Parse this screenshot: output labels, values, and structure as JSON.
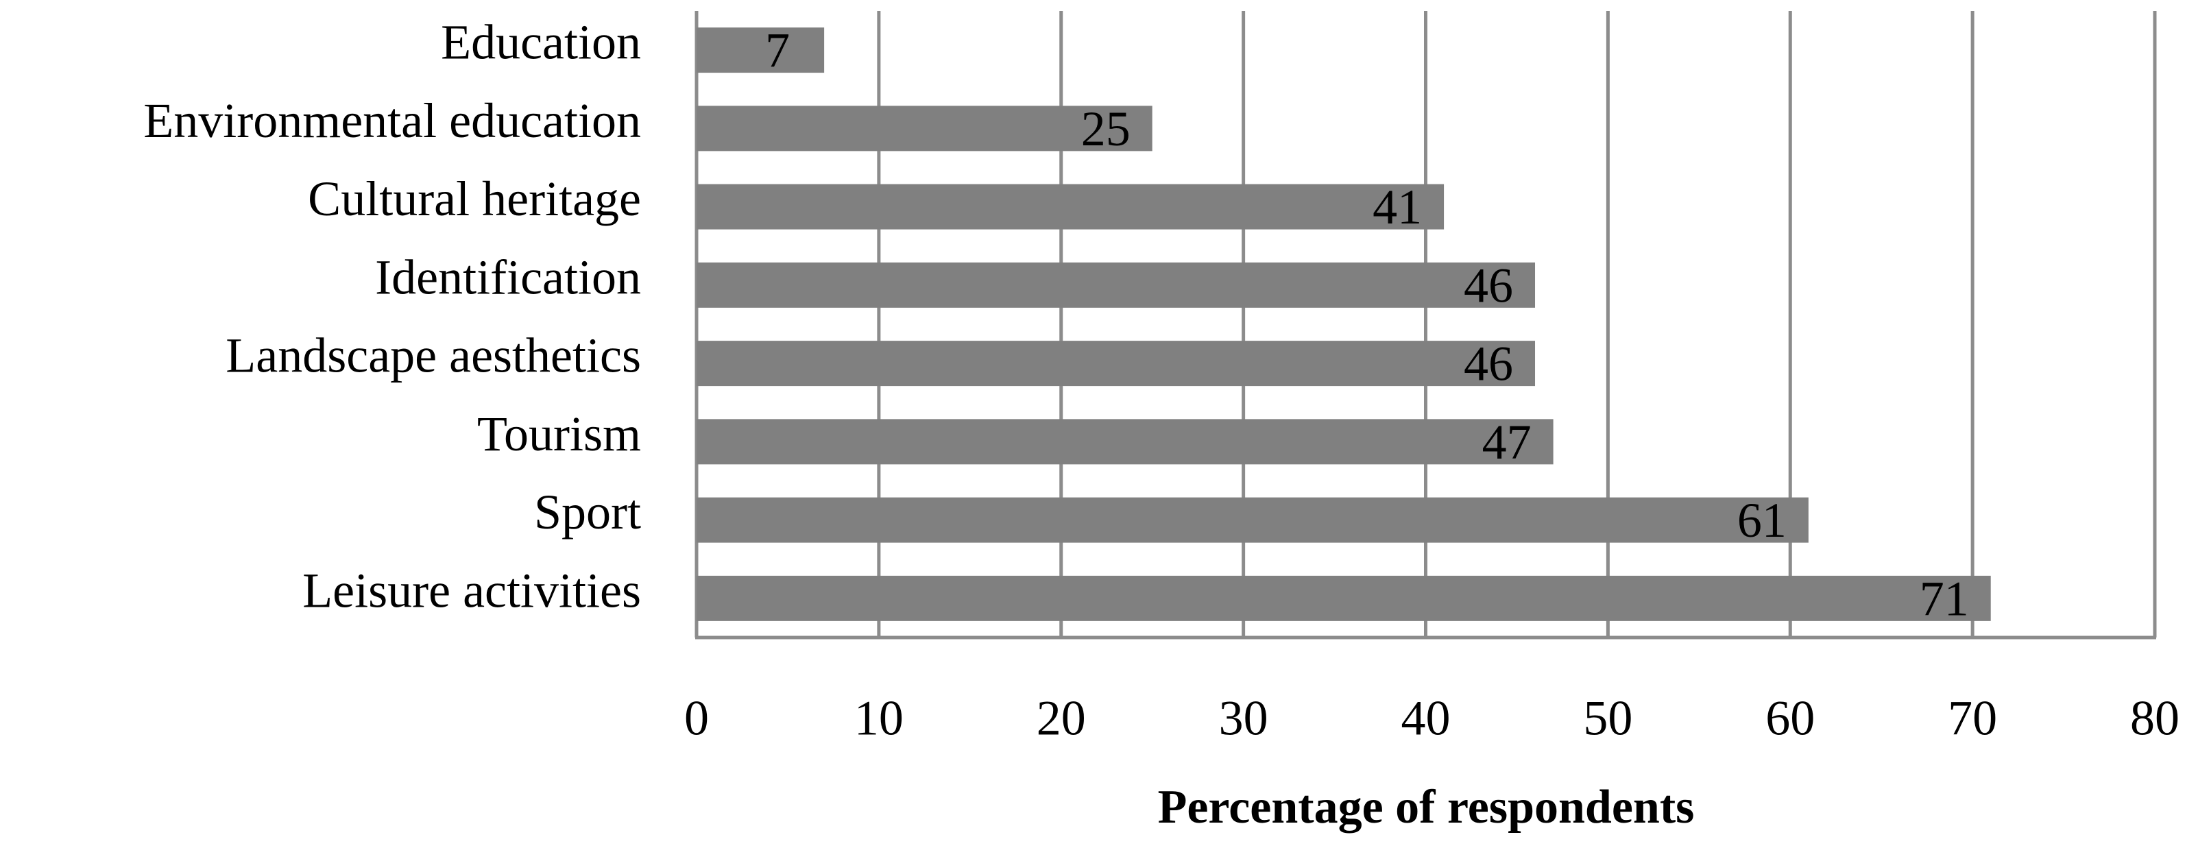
{
  "chart_data": {
    "type": "bar",
    "orientation": "horizontal",
    "x_label": "Percentage of respondents",
    "categories": [
      "Education",
      "Environmental education",
      "Cultural heritage",
      "Identification",
      "Landscape aesthetics",
      "Tourism",
      "Sport",
      "Leisure activities"
    ],
    "values": [
      7,
      25,
      41,
      46,
      46,
      47,
      61,
      71
    ],
    "color": "#808080",
    "xlim": [
      0,
      80
    ],
    "xticks": [
      0,
      10,
      20,
      30,
      40,
      50,
      60,
      70,
      80
    ],
    "grid": true
  }
}
